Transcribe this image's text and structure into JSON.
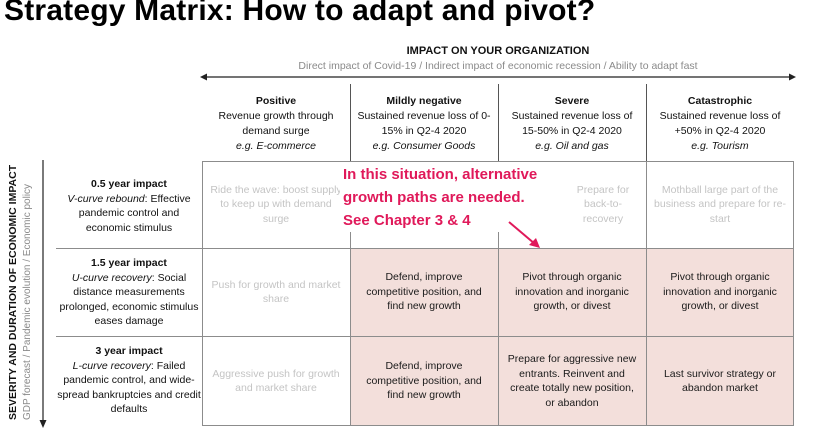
{
  "title": "Strategy Matrix: How to adapt and pivot?",
  "x_axis": {
    "heading": "IMPACT ON YOUR ORGANIZATION",
    "subheading": "Direct impact of Covid-19 / Indirect impact of economic recession / Ability to adapt fast"
  },
  "y_axis": {
    "heading": "SEVERITY AND DURATION OF ECONOMIC IMPACT",
    "subheading": "GDP forecast / Pandemic evolution / Economic policy"
  },
  "columns": [
    {
      "title": "Positive",
      "desc": "Revenue growth through demand surge",
      "example": "e.g. E-commerce"
    },
    {
      "title": "Mildly negative",
      "desc": "Sustained revenue loss of 0-15% in Q2-4 2020",
      "example": "e.g. Consumer Goods"
    },
    {
      "title": "Severe",
      "desc": "Sustained revenue loss of 15-50% in Q2-4 2020",
      "example": "e.g. Oil and gas"
    },
    {
      "title": "Catastrophic",
      "desc": "Sustained revenue loss of +50% in Q2-4 2020",
      "example": "e.g. Tourism"
    }
  ],
  "rows": [
    {
      "title": "0.5 year impact",
      "type": "V-curve rebound",
      "desc": ": Effective pandemic control and economic stimulus"
    },
    {
      "title": "1.5 year impact",
      "type": "U-curve recovery",
      "desc": ": Social distance measurements prolonged, economic stimulus eases damage"
    },
    {
      "title": "3 year impact",
      "type": "L-curve recovery",
      "desc": ": Failed pandemic control, and wide-spread bankruptcies and credit defaults"
    }
  ],
  "cells": [
    [
      "Ride the wave: boost supply to keep up with demand surge",
      "",
      "Prepare for back-to-recovery",
      "Mothball large part of the business and prepare for re-start"
    ],
    [
      "Push for growth and market share",
      "Defend, improve competitive position, and find new growth",
      "Pivot through organic innovation and inorganic growth, or divest",
      "Pivot through organic innovation and inorganic growth, or divest"
    ],
    [
      "Aggressive push for growth and market share",
      "Defend, improve competitive position, and find new growth",
      "Prepare for aggressive new entrants. Reinvent and create totally new position, or abandon",
      "Last survivor strategy or abandon market"
    ]
  ],
  "callout": {
    "line1": "In this situation, alternative",
    "line2": "growth paths are needed.",
    "line3": "See Chapter 3 & 4",
    "color": "#e0195a"
  },
  "colors": {
    "highlight_cell": "#f3dfdb",
    "faded_text": "#c4c4c4"
  }
}
